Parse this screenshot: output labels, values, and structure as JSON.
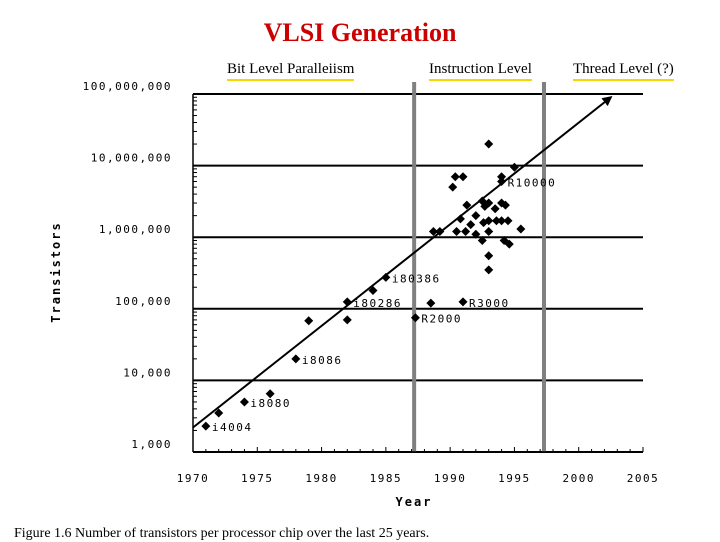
{
  "slide_title": "VLSI Generation",
  "eras": [
    {
      "label": "Bit Level Paralleiism"
    },
    {
      "label": "Instruction Level"
    },
    {
      "label": "Thread Level (?)"
    }
  ],
  "caption": "Figure 1.6 Number of transistors per processor chip over the last 25 years.",
  "colors": {
    "title": "#cc0000",
    "era_underline": "#f5d800",
    "era_bar": "#808080",
    "ink": "#000000"
  },
  "chart_data": {
    "type": "scatter",
    "title": "",
    "xlabel": "Year",
    "ylabel": "Transistors",
    "xlim": [
      1970,
      2005
    ],
    "ylim": [
      1000,
      100000000
    ],
    "yscale": "log",
    "xticks": [
      1970,
      1975,
      1980,
      1985,
      1990,
      1995,
      2000,
      2005
    ],
    "yticks": [
      {
        "value": 1000,
        "label": "1,000"
      },
      {
        "value": 10000,
        "label": "10,000"
      },
      {
        "value": 100000,
        "label": "100,000"
      },
      {
        "value": 1000000,
        "label": "1,000,000"
      },
      {
        "value": 10000000,
        "label": "10,000,000"
      },
      {
        "value": 100000000,
        "label": "100,000,000"
      }
    ],
    "era_boundaries": [
      1987.2,
      1997.3
    ],
    "trend_line": [
      [
        1970,
        2200
      ],
      [
        2002.5,
        90000000
      ]
    ],
    "points": [
      {
        "x": 1971,
        "y": 2300,
        "label": "i4004"
      },
      {
        "x": 1972,
        "y": 3500
      },
      {
        "x": 1974,
        "y": 5000,
        "label": "i8080"
      },
      {
        "x": 1976,
        "y": 6500
      },
      {
        "x": 1978,
        "y": 20000,
        "label": "i8086"
      },
      {
        "x": 1979,
        "y": 68000
      },
      {
        "x": 1982,
        "y": 125000,
        "label": "i80286"
      },
      {
        "x": 1982,
        "y": 70000
      },
      {
        "x": 1984,
        "y": 180000
      },
      {
        "x": 1985,
        "y": 275000,
        "label": "i80386"
      },
      {
        "x": 1987.3,
        "y": 75000,
        "label": "R2000"
      },
      {
        "x": 1988.5,
        "y": 120000
      },
      {
        "x": 1991,
        "y": 125000,
        "label": "R3000"
      },
      {
        "x": 1988.7,
        "y": 1200000
      },
      {
        "x": 1989.2,
        "y": 1200000
      },
      {
        "x": 1990.5,
        "y": 1200000
      },
      {
        "x": 1990.2,
        "y": 5000000
      },
      {
        "x": 1990.4,
        "y": 7000000
      },
      {
        "x": 1991,
        "y": 7000000
      },
      {
        "x": 1990.8,
        "y": 1800000
      },
      {
        "x": 1991.3,
        "y": 2800000
      },
      {
        "x": 1991.6,
        "y": 1500000
      },
      {
        "x": 1991.2,
        "y": 1200000
      },
      {
        "x": 1992,
        "y": 2000000
      },
      {
        "x": 1992,
        "y": 1100000
      },
      {
        "x": 1992.5,
        "y": 900000
      },
      {
        "x": 1992.5,
        "y": 3200000
      },
      {
        "x": 1992.7,
        "y": 2700000
      },
      {
        "x": 1992.6,
        "y": 1600000
      },
      {
        "x": 1993,
        "y": 20000000
      },
      {
        "x": 1993,
        "y": 3000000
      },
      {
        "x": 1993,
        "y": 1700000
      },
      {
        "x": 1993,
        "y": 1200000
      },
      {
        "x": 1993,
        "y": 550000
      },
      {
        "x": 1993,
        "y": 350000
      },
      {
        "x": 1993.5,
        "y": 2500000
      },
      {
        "x": 1993.6,
        "y": 1700000
      },
      {
        "x": 1994,
        "y": 7000000
      },
      {
        "x": 1994,
        "y": 6000000,
        "label": "R10000"
      },
      {
        "x": 1994,
        "y": 3000000
      },
      {
        "x": 1994,
        "y": 1700000
      },
      {
        "x": 1994.3,
        "y": 2800000
      },
      {
        "x": 1994.2,
        "y": 900000
      },
      {
        "x": 1994.5,
        "y": 1700000
      },
      {
        "x": 1994.6,
        "y": 800000
      },
      {
        "x": 1995,
        "y": 9500000
      },
      {
        "x": 1995.5,
        "y": 1300000
      }
    ]
  }
}
